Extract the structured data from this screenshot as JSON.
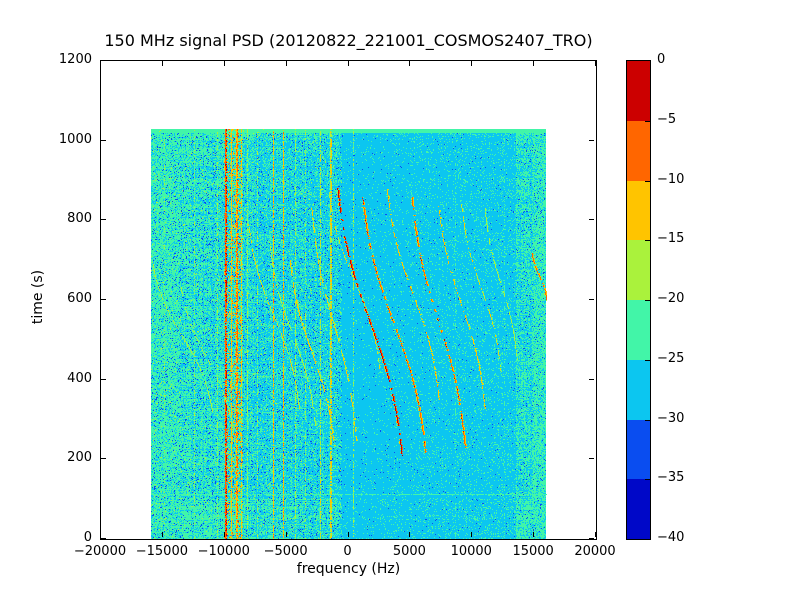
{
  "figure": {
    "background": "#ffffff",
    "text_color": "#000000",
    "frame_color": "#000000"
  },
  "chart_data": {
    "type": "heatmap",
    "title": "150 MHz signal PSD (20120822_221001_COSMOS2407_TRO)",
    "xlabel": "frequency (Hz)",
    "ylabel": "time (s)",
    "xlim": [
      -20000,
      20000
    ],
    "ylim": [
      0,
      1200
    ],
    "grid": false,
    "xticks": [
      {
        "v": -20000,
        "label": "−20000"
      },
      {
        "v": -15000,
        "label": "−15000"
      },
      {
        "v": -10000,
        "label": "−10000"
      },
      {
        "v": -5000,
        "label": "−5000"
      },
      {
        "v": 0,
        "label": "0"
      },
      {
        "v": 5000,
        "label": "5000"
      },
      {
        "v": 10000,
        "label": "10000"
      },
      {
        "v": 15000,
        "label": "15000"
      },
      {
        "v": 20000,
        "label": "20000"
      }
    ],
    "yticks": [
      {
        "v": 0,
        "label": "0"
      },
      {
        "v": 200,
        "label": "200"
      },
      {
        "v": 400,
        "label": "400"
      },
      {
        "v": 600,
        "label": "600"
      },
      {
        "v": 800,
        "label": "800"
      },
      {
        "v": 1000,
        "label": "1000"
      },
      {
        "v": 1200,
        "label": "1200"
      }
    ],
    "colorbar": {
      "range_db": [
        -40,
        0
      ],
      "bin_size_db": 5,
      "ticks": [
        {
          "v": 0,
          "label": "0"
        },
        {
          "v": -5,
          "label": "−5"
        },
        {
          "v": -10,
          "label": "−10"
        },
        {
          "v": -15,
          "label": "−15"
        },
        {
          "v": -20,
          "label": "−20"
        },
        {
          "v": -25,
          "label": "−25"
        },
        {
          "v": -30,
          "label": "−30"
        },
        {
          "v": -35,
          "label": "−35"
        },
        {
          "v": -40,
          "label": "−40"
        }
      ],
      "colors_top_to_bottom": [
        "#cc0000",
        "#ff6600",
        "#ffc400",
        "#aaf23c",
        "#42f5a8",
        "#0cc6f0",
        "#0a4df0",
        "#0008c8"
      ]
    },
    "data_extent": {
      "freq_hz": [
        -16000,
        16000
      ],
      "time_s": [
        0,
        1030
      ]
    },
    "noise_zones": [
      {
        "f_range": [
          -16000,
          -13700
        ],
        "base_db": -22,
        "speckles": [
          [
            -27,
            0.28
          ],
          [
            -31,
            0.05
          ],
          [
            -16,
            0.02
          ]
        ],
        "textured": false,
        "gradient": [
          1,
          1
        ]
      },
      {
        "f_range": [
          -13700,
          -10100
        ],
        "base_db": -27,
        "speckles": [
          [
            -22,
            0.48
          ],
          [
            -31,
            0.06
          ],
          [
            -16,
            0.012
          ]
        ],
        "textured": true,
        "gradient": [
          1.15,
          0.9
        ]
      },
      {
        "f_range": [
          -10100,
          -8500
        ],
        "base_db": -27,
        "speckles": [
          [
            -22,
            0.4
          ],
          [
            -13,
            0.15
          ],
          [
            -8,
            0.05
          ],
          [
            -31,
            0.05
          ]
        ],
        "textured": true,
        "gradient": [
          1,
          1
        ]
      },
      {
        "f_range": [
          -8500,
          -500
        ],
        "base_db": -27,
        "speckles": [
          [
            -22,
            0.38
          ],
          [
            -31,
            0.05
          ],
          [
            -16,
            0.01
          ]
        ],
        "textured": true,
        "gradient": [
          1.0,
          0.72
        ]
      },
      {
        "f_range": [
          -500,
          13500
        ],
        "base_db": -27,
        "speckles": [
          [
            -22,
            0.07
          ],
          [
            -31,
            0.01
          ]
        ],
        "textured": true,
        "gradient": [
          0.6,
          2.0
        ]
      },
      {
        "f_range": [
          13500,
          14900
        ],
        "base_db": -27,
        "speckles": [
          [
            -22,
            0.45
          ],
          [
            -31,
            0.03
          ]
        ],
        "textured": true,
        "gradient": [
          1,
          1
        ]
      },
      {
        "f_range": [
          14900,
          16000
        ],
        "base_db": -22,
        "speckles": [
          [
            -27,
            0.3
          ],
          [
            -31,
            0.04
          ]
        ],
        "textured": false,
        "gradient": [
          1,
          1
        ]
      }
    ],
    "vertical_lines": [
      {
        "f": -14900,
        "level": -21,
        "w": 1,
        "p": 0.5
      },
      {
        "f": -12500,
        "level": -21,
        "w": 1,
        "p": 0.6
      },
      {
        "f": -10600,
        "level": -20,
        "w": 1,
        "p": 0.7
      },
      {
        "f": -9950,
        "level": -7,
        "w": 2,
        "p": 0.95
      },
      {
        "f": -9500,
        "level": -13,
        "w": 1,
        "p": 0.9
      },
      {
        "f": -9100,
        "level": -11,
        "w": 2,
        "p": 0.9
      },
      {
        "f": -8700,
        "level": -14,
        "w": 1,
        "p": 0.85
      },
      {
        "f": -8200,
        "level": -19,
        "w": 1,
        "p": 0.8
      },
      {
        "f": -7400,
        "level": -20,
        "w": 1,
        "p": 0.7
      },
      {
        "f": -6100,
        "level": -12,
        "w": 1,
        "p": 0.85
      },
      {
        "f": -5300,
        "level": -12,
        "w": 1,
        "p": 0.85
      },
      {
        "f": -4300,
        "level": -19,
        "w": 1,
        "p": 0.7
      },
      {
        "f": -3500,
        "level": -20,
        "w": 1,
        "p": 0.6
      },
      {
        "f": -2300,
        "level": -17,
        "w": 1,
        "p": 0.7
      },
      {
        "f": -1500,
        "level": -16,
        "w": 2,
        "p": 0.9
      },
      {
        "f": 400,
        "level": -19,
        "w": 1,
        "p": 0.7
      },
      {
        "f": 8570,
        "level": -23,
        "w": 1,
        "p": 0.35
      },
      {
        "f": 12600,
        "level": -23,
        "w": 1,
        "p": 0.3
      }
    ],
    "doppler_traces": [
      {
        "f_top": -15900,
        "t_top": 700,
        "f_bot": -11000,
        "t_bot": 320,
        "level": -18
      },
      {
        "f_top": -13600,
        "t_top": 640,
        "f_bot": -9300,
        "t_bot": 265,
        "level": -19
      },
      {
        "f_top": -8100,
        "t_top": 790,
        "f_bot": -4000,
        "t_bot": 330,
        "level": -15
      },
      {
        "f_top": -6400,
        "t_top": 745,
        "f_bot": -2700,
        "t_bot": 285,
        "level": -17
      },
      {
        "f_top": -4750,
        "t_top": 700,
        "f_bot": -1200,
        "t_bot": 235,
        "level": -13
      },
      {
        "f_top": -3000,
        "t_top": 830,
        "f_bot": 600,
        "t_bot": 245,
        "level": -14
      },
      {
        "f_top": -1600,
        "t_top": 870,
        "f_bot": 2500,
        "t_bot": 430,
        "level": -16
      },
      {
        "f_top": -900,
        "t_top": 880,
        "f_bot": 4300,
        "t_bot": 210,
        "level": -2
      },
      {
        "f_top": 1100,
        "t_top": 862,
        "f_bot": 6200,
        "t_bot": 218,
        "level": -7
      },
      {
        "f_top": 3100,
        "t_top": 878,
        "f_bot": 7300,
        "t_bot": 350,
        "level": -12
      },
      {
        "f_top": 5100,
        "t_top": 858,
        "f_bot": 9400,
        "t_bot": 232,
        "level": -7
      },
      {
        "f_top": 7200,
        "t_top": 850,
        "f_bot": 11000,
        "t_bot": 330,
        "level": -13
      },
      {
        "f_top": 9100,
        "t_top": 840,
        "f_bot": 12300,
        "t_bot": 420,
        "level": -16
      },
      {
        "f_top": 11000,
        "t_top": 832,
        "f_bot": 13600,
        "t_bot": 450,
        "level": -18
      },
      {
        "f_top": 14800,
        "t_top": 720,
        "f_bot": 16000,
        "t_bot": 600,
        "level": -8
      }
    ],
    "horizontal_line_t": 114
  }
}
